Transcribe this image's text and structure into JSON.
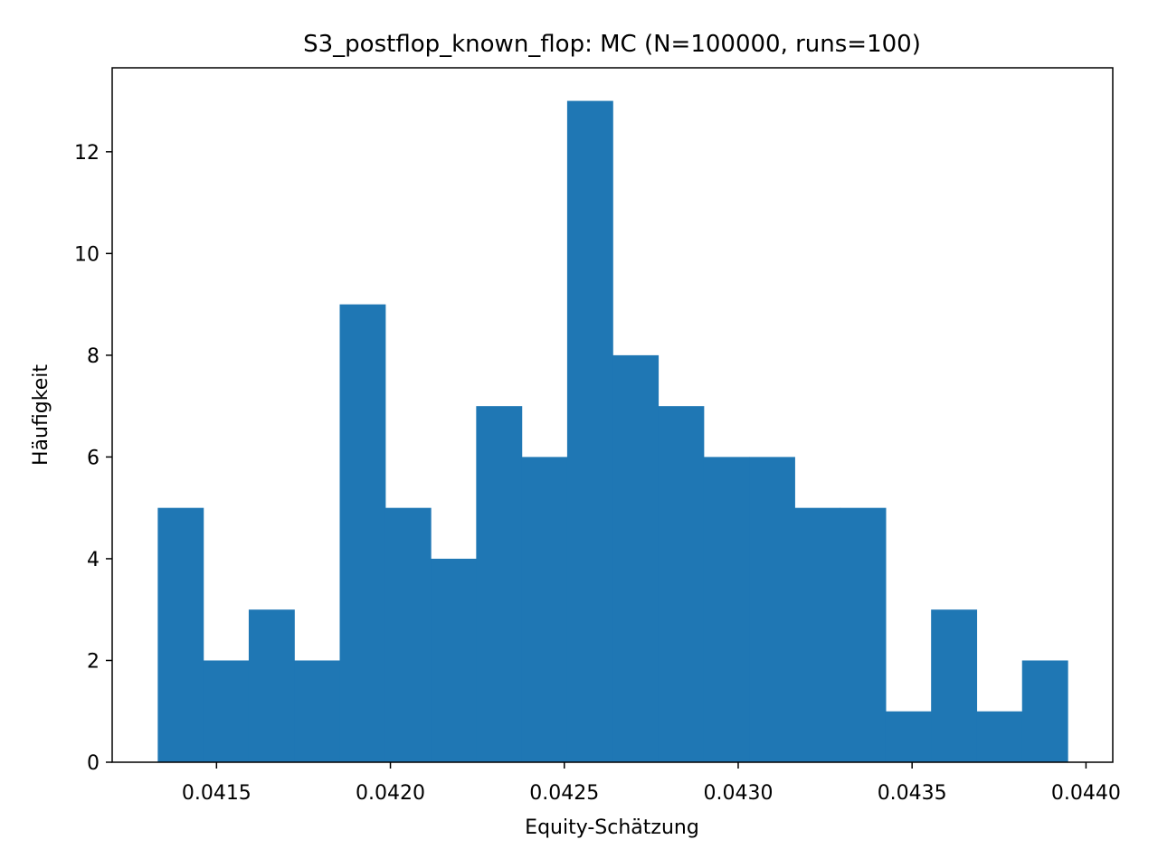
{
  "chart_data": {
    "type": "bar",
    "subtype": "histogram",
    "title": "S3_postflop_known_flop: MC (N=100000, runs=100)",
    "xlabel": "Equity-Schätzung",
    "ylabel": "Häufigkeit",
    "xlim": [
      0.0412,
      0.044077
    ],
    "ylim": [
      0,
      13.65
    ],
    "x_ticks": [
      "0.0415",
      "0.0420",
      "0.0425",
      "0.0430",
      "0.0435",
      "0.0440"
    ],
    "x_tick_values": [
      0.0415,
      0.042,
      0.0425,
      0.043,
      0.0435,
      0.044
    ],
    "y_ticks": [
      "0",
      "2",
      "4",
      "6",
      "8",
      "10",
      "12"
    ],
    "y_tick_values": [
      0,
      2,
      4,
      6,
      8,
      10,
      12
    ],
    "bin_start": 0.041331,
    "bin_width": 0.0001308,
    "counts": [
      5,
      2,
      3,
      2,
      9,
      5,
      4,
      7,
      6,
      13,
      8,
      7,
      6,
      6,
      5,
      5,
      1,
      3,
      1,
      2
    ],
    "bar_color": "#1f77b4",
    "grid": false,
    "legend": "none"
  }
}
